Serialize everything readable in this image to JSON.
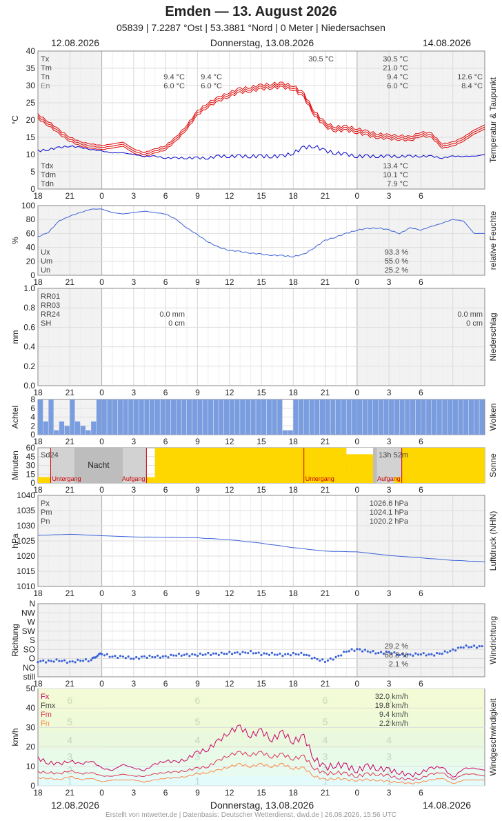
{
  "header": {
    "title": "Emden  —  13. August 2026",
    "subtitle": "05839  |  7.2287 °Ost  |  53.3881 °Nord  |  0 Meter  |  Niedersachsen",
    "date_left": "12.08.2026",
    "date_center": "Donnerstag, 13.08.2026",
    "date_right": "14.08.2026"
  },
  "footer": "Erstellt von mtwetter.de | Datenbasis: Deutscher Wetterdienst, dwd.de | 26.08.2026, 15:56 UTC",
  "x_axis": {
    "hours_start": 18,
    "hours_end": 60,
    "tick_labels": [
      "18",
      "21",
      "0",
      "3",
      "6",
      "9",
      "12",
      "15",
      "18",
      "21",
      "0",
      "3",
      "6"
    ]
  },
  "colors": {
    "temp": "#e00000",
    "dew": "#0000cc",
    "humidity": "#3a62d8",
    "cloud": "#7a9de0",
    "sun": "#ffd700",
    "pressure": "#3a62d8",
    "wind_dir": "#3a62d8",
    "wind_max": "#cc0066",
    "wind_mean": "#dd3355",
    "wind_min": "#ff8844"
  },
  "chart_data": [
    {
      "id": "temperature",
      "type": "line",
      "ylabel": "°C",
      "side_label": "Temperatur & Taupunkt",
      "ylim": [
        0,
        40
      ],
      "yticks": [
        "0",
        "5",
        "10",
        "15",
        "20",
        "25",
        "30",
        "35",
        "40"
      ],
      "legend_top": [
        "Tx",
        "Tm",
        "Tn",
        "En"
      ],
      "legend_bottom": [
        "Tdx",
        "Tdm",
        "Tdn"
      ],
      "annotations": {
        "a1": [
          "9.4 °C",
          "6.0 °C"
        ],
        "a2": [
          "9.4 °C",
          "6.0 °C"
        ],
        "a3": "30.5 °C",
        "a4": [
          "30.5 °C",
          "21.0 °C",
          "9.4 °C",
          "6.0 °C"
        ],
        "a5": [
          "12.6 °C",
          "8.4 °C"
        ],
        "a6": [
          "13.4 °C",
          "10.1 °C",
          "7.9 °C"
        ]
      },
      "temp_series": {
        "x": [
          18,
          19,
          20,
          21,
          22,
          23,
          24,
          25,
          26,
          27,
          28,
          29,
          30,
          31,
          32,
          33,
          34,
          35,
          36,
          37,
          38,
          39,
          40,
          41,
          42,
          43,
          44,
          45,
          46,
          47,
          48,
          49,
          50,
          51,
          52,
          53,
          54,
          55,
          56,
          57,
          58,
          59,
          60
        ],
        "y": [
          21,
          19,
          16.5,
          14.5,
          13,
          12.5,
          12,
          12.5,
          13,
          11,
          10,
          11,
          12,
          14.5,
          18,
          22,
          24.5,
          26,
          27.5,
          28.5,
          29,
          29.5,
          30,
          30,
          29.5,
          27,
          22,
          18.5,
          17.5,
          17.5,
          17,
          16,
          15.5,
          15,
          15,
          14.5,
          16,
          15.5,
          12.5,
          13,
          14.5,
          16.5,
          18
        ]
      },
      "dew_series": {
        "x": [
          18,
          19,
          20,
          21,
          22,
          23,
          24,
          25,
          26,
          27,
          28,
          29,
          30,
          31,
          32,
          33,
          34,
          35,
          36,
          37,
          38,
          39,
          40,
          41,
          42,
          43,
          44,
          45,
          46,
          47,
          48,
          49,
          50,
          51,
          52,
          53,
          54,
          55,
          56,
          57,
          58,
          59,
          60
        ],
        "y": [
          11,
          11.5,
          12,
          12.5,
          12,
          11.5,
          11,
          10.5,
          10.5,
          10,
          9.5,
          9.5,
          9,
          9,
          9,
          9,
          9,
          9.5,
          9.5,
          9.5,
          9.5,
          9.5,
          9.5,
          9.5,
          10.5,
          12,
          12.5,
          11,
          10.5,
          10,
          9.5,
          9.5,
          9.5,
          9.5,
          9.5,
          9.5,
          9.5,
          9.5,
          9,
          9.5,
          9.5,
          9.5,
          10
        ]
      }
    },
    {
      "id": "humidity",
      "type": "line",
      "ylabel": "%",
      "side_label": "relative Feuchte",
      "ylim": [
        0,
        100
      ],
      "yticks": [
        "0",
        "20",
        "40",
        "60",
        "80",
        "100"
      ],
      "legend": [
        "Ux",
        "Um",
        "Un"
      ],
      "values": [
        "93.3 %",
        "55.0 %",
        "25.2 %"
      ],
      "series": {
        "x": [
          18,
          19,
          20,
          21,
          22,
          23,
          24,
          25,
          26,
          27,
          28,
          29,
          30,
          31,
          32,
          33,
          34,
          35,
          36,
          37,
          38,
          39,
          40,
          41,
          42,
          43,
          44,
          45,
          46,
          47,
          48,
          49,
          50,
          51,
          52,
          53,
          54,
          55,
          56,
          57,
          58,
          59,
          60
        ],
        "y": [
          55,
          62,
          78,
          85,
          90,
          95,
          95,
          90,
          88,
          90,
          92,
          90,
          88,
          80,
          68,
          58,
          48,
          40,
          36,
          34,
          32,
          30,
          29,
          28,
          27,
          30,
          40,
          50,
          55,
          60,
          65,
          67,
          68,
          65,
          60,
          68,
          65,
          70,
          75,
          80,
          78,
          60,
          60
        ]
      }
    },
    {
      "id": "precip",
      "type": "line",
      "ylabel": "mm",
      "side_label": "Niederschlag",
      "ylim": [
        0,
        1
      ],
      "yticks": [
        "0.0",
        "0.2",
        "0.4",
        "0.6",
        "0.8",
        "1.0"
      ],
      "legend": [
        "RR01",
        "RR03",
        "RR24",
        "SH"
      ],
      "values_mid": [
        "0.0 mm",
        "0 cm"
      ],
      "values_right": [
        "0.0 mm",
        "0 cm"
      ]
    },
    {
      "id": "clouds",
      "type": "bar",
      "ylabel": "Achtel",
      "side_label": "Wolken",
      "ylim": [
        0,
        8
      ],
      "yticks": [
        "0",
        "2",
        "4",
        "6",
        "8"
      ],
      "clear_hours": [
        18.5,
        19.5,
        20.0,
        20.5,
        21.5,
        22.0,
        22.5,
        23.0,
        41.0,
        41.5
      ]
    },
    {
      "id": "sunshine",
      "type": "bar",
      "ylabel": "Minuten",
      "side_label": "Sonne",
      "ylim": [
        0,
        60
      ],
      "yticks": [
        "0",
        "15",
        "30",
        "45",
        "60"
      ],
      "legend": [
        "Sd24"
      ],
      "total": "13h 52m",
      "night_label": "Nacht",
      "sunset_label": "Untergang",
      "sunrise_label": "Aufgang",
      "sunset_hours": [
        19.2,
        43.0
      ],
      "sunrise_hours": [
        28.2,
        52.2
      ]
    },
    {
      "id": "pressure",
      "type": "line",
      "ylabel": "hPa",
      "side_label": "Luftdruck (NHN)",
      "ylim": [
        1010,
        1040
      ],
      "yticks": [
        "1010",
        "1015",
        "1020",
        "1025",
        "1030",
        "1035",
        "1040"
      ],
      "legend": [
        "Px",
        "Pm",
        "Pn"
      ],
      "values": [
        "1026.6 hPa",
        "1024.1 hPa",
        "1020.2 hPa"
      ],
      "series": {
        "x": [
          18,
          21,
          24,
          27,
          30,
          33,
          36,
          39,
          42,
          45,
          48,
          51,
          54,
          57,
          60
        ],
        "y": [
          1026.8,
          1027.2,
          1026.7,
          1026.3,
          1026.2,
          1026.0,
          1025.4,
          1024.2,
          1022.8,
          1021.6,
          1021.4,
          1020.2,
          1019.4,
          1018.6,
          1018.1
        ]
      }
    },
    {
      "id": "wind_direction",
      "type": "scatter",
      "ylabel": "Richtung",
      "side_label": "Windrichtung",
      "yticks": [
        "still",
        "NO",
        "O",
        "SO",
        "S",
        "SW",
        "W",
        "NW",
        "N"
      ],
      "values": [
        "29.2 %",
        "68.8 %",
        "2.1 %"
      ],
      "series": {
        "x": [
          18,
          19,
          20,
          21,
          22,
          23,
          23.5,
          24,
          25,
          26,
          27,
          28,
          29,
          30,
          31,
          32,
          33,
          34,
          35,
          36,
          37,
          38,
          39,
          40,
          41,
          42,
          43,
          44,
          45,
          46,
          47,
          48,
          49,
          50,
          51,
          52,
          53,
          54,
          55,
          56,
          57,
          58,
          59,
          60
        ],
        "y": [
          1.7,
          1.7,
          1.8,
          1.6,
          1.8,
          1.8,
          2.3,
          2.5,
          2.2,
          2.2,
          2.0,
          2.2,
          2.2,
          2.2,
          2.4,
          2.4,
          2.4,
          2.5,
          2.5,
          2.6,
          2.6,
          2.7,
          2.5,
          2.5,
          2.4,
          2.5,
          2.5,
          2.0,
          1.7,
          2.1,
          2.8,
          3.0,
          2.8,
          2.6,
          2.7,
          2.4,
          2.4,
          2.5,
          2.4,
          2.6,
          2.9,
          3.3,
          3.3,
          3.3
        ]
      }
    },
    {
      "id": "wind_speed",
      "type": "line",
      "ylabel": "km/h",
      "side_label": "Windgeschwindigkeit",
      "ylim": [
        0,
        50
      ],
      "yticks": [
        "0",
        "10",
        "20",
        "30",
        "40",
        "50"
      ],
      "legend": [
        "Fx",
        "Fmx",
        "Fm",
        "Fn"
      ],
      "values": [
        "32.0 km/h",
        "19.8 km/h",
        "9.4 km/h",
        "2.2 km/h"
      ],
      "beaufort_labels": [
        "1",
        "2",
        "3",
        "4",
        "5",
        "6"
      ],
      "max_series": {
        "x": [
          18,
          19,
          20,
          21,
          22,
          23,
          24,
          25,
          26,
          27,
          28,
          29,
          30,
          31,
          32,
          33,
          34,
          35,
          36,
          37,
          38,
          39,
          40,
          41,
          42,
          43,
          44,
          45,
          46,
          47,
          48,
          49,
          50,
          51,
          52,
          53,
          54,
          55,
          56,
          57,
          58,
          59,
          60
        ],
        "y": [
          14,
          12,
          11,
          13,
          11,
          13,
          9,
          8,
          11,
          9,
          8,
          11,
          13,
          12,
          14,
          17,
          19,
          23,
          28,
          30,
          26,
          28,
          24,
          27,
          23,
          25,
          14,
          9,
          11,
          10,
          8,
          10,
          9,
          8,
          7,
          5,
          7,
          9,
          10,
          4,
          9,
          9,
          8
        ]
      },
      "mean_series": {
        "x": [
          18,
          19,
          20,
          21,
          22,
          23,
          24,
          25,
          26,
          27,
          28,
          29,
          30,
          31,
          32,
          33,
          34,
          35,
          36,
          37,
          38,
          39,
          40,
          41,
          42,
          43,
          44,
          45,
          46,
          47,
          48,
          49,
          50,
          51,
          52,
          53,
          54,
          55,
          56,
          57,
          58,
          59,
          60
        ],
        "y": [
          7,
          7,
          6,
          8,
          6,
          7,
          5,
          5,
          6,
          5,
          5,
          6,
          7,
          7,
          8,
          9,
          10,
          13,
          16,
          17,
          16,
          17,
          15,
          16,
          14,
          15,
          9,
          6,
          7,
          6,
          5,
          6,
          6,
          5,
          4,
          3,
          4,
          6,
          7,
          3,
          6,
          6,
          5
        ]
      },
      "min_series": {
        "x": [
          18,
          19,
          20,
          21,
          22,
          23,
          24,
          25,
          26,
          27,
          28,
          29,
          30,
          31,
          32,
          33,
          34,
          35,
          36,
          37,
          38,
          39,
          40,
          41,
          42,
          43,
          44,
          45,
          46,
          47,
          48,
          49,
          50,
          51,
          52,
          53,
          54,
          55,
          56,
          57,
          58,
          59,
          60
        ],
        "y": [
          4,
          4,
          3,
          5,
          3,
          4,
          2,
          3,
          3,
          3,
          2,
          3,
          4,
          4,
          5,
          6,
          7,
          8,
          10,
          11,
          10,
          11,
          10,
          11,
          9,
          9,
          5,
          3,
          4,
          3,
          3,
          3,
          3,
          2,
          2,
          1,
          2,
          3,
          4,
          1,
          3,
          3,
          3
        ]
      }
    }
  ]
}
